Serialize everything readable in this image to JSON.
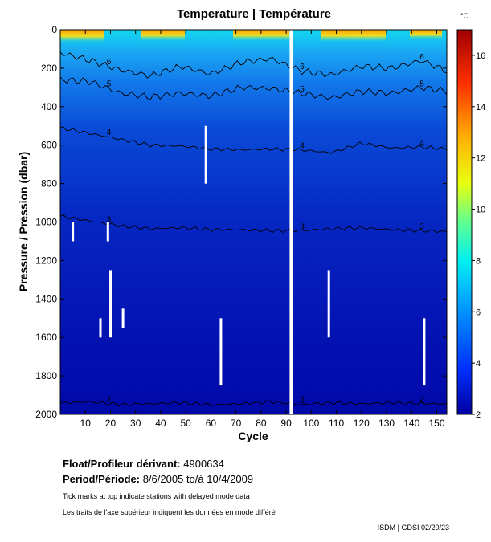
{
  "chart_data": {
    "type": "heatmap",
    "title": "Temperature | Température",
    "xlabel": "Cycle",
    "ylabel": "Pressure / Pression (dbar)",
    "colorbar_unit": "°C",
    "xlim": [
      0,
      154
    ],
    "ylim": [
      2000,
      0
    ],
    "clim": [
      2,
      17
    ],
    "xticks": [
      10,
      20,
      30,
      40,
      50,
      60,
      70,
      80,
      90,
      100,
      110,
      120,
      130,
      140,
      150
    ],
    "yticks": [
      0,
      200,
      400,
      600,
      800,
      1000,
      1200,
      1400,
      1600,
      1800,
      2000
    ],
    "colorbar_ticks": [
      2,
      4,
      6,
      8,
      10,
      12,
      14,
      16
    ],
    "contours": [
      {
        "level": 6,
        "label": "6",
        "depths": [
          120,
          160,
          210,
          240,
          190,
          230,
          170,
          150,
          215,
          235,
          190,
          200,
          160,
          215
        ]
      },
      {
        "level": 5,
        "label": "5",
        "depths": [
          260,
          270,
          330,
          350,
          330,
          345,
          300,
          305,
          330,
          355,
          320,
          330,
          300,
          320
        ]
      },
      {
        "level": 4,
        "label": "4",
        "depths": [
          510,
          540,
          570,
          600,
          605,
          620,
          625,
          620,
          625,
          640,
          590,
          615,
          610,
          620
        ]
      },
      {
        "level": 3,
        "label": "3",
        "depths": [
          970,
          995,
          1020,
          1035,
          1030,
          1040,
          1040,
          1045,
          1045,
          1035,
          1030,
          1040,
          1045,
          1050
        ]
      },
      {
        "level": 2,
        "label": "2",
        "depths": [
          1940,
          1935,
          1950,
          1945,
          1940,
          1950,
          1945,
          1935,
          1950,
          1940,
          1945,
          1940,
          1945,
          1945
        ]
      }
    ],
    "contour_x": [
      0,
      12,
      24,
      36,
      48,
      60,
      72,
      84,
      96,
      108,
      120,
      132,
      144,
      154
    ],
    "data_gaps": [
      {
        "cycle": 92,
        "pmin": 0,
        "pmax": 2000
      },
      {
        "cycle": 58,
        "pmin": 500,
        "pmax": 800
      },
      {
        "cycle": 5,
        "pmin": 1000,
        "pmax": 1100
      },
      {
        "cycle": 19,
        "pmin": 1000,
        "pmax": 1100
      },
      {
        "cycle": 20,
        "pmin": 1250,
        "pmax": 1600
      },
      {
        "cycle": 16,
        "pmin": 1500,
        "pmax": 1600
      },
      {
        "cycle": 25,
        "pmin": 1450,
        "pmax": 1550
      },
      {
        "cycle": 64,
        "pmin": 1500,
        "pmax": 1850
      },
      {
        "cycle": 107,
        "pmin": 1250,
        "pmax": 1600
      },
      {
        "cycle": 145,
        "pmin": 1500,
        "pmax": 1850
      }
    ]
  },
  "float_label": "Float/Profileur dérivant:",
  "float_id": "4900634",
  "period_label": "Period/Période:",
  "period_start": "8/6/2005",
  "period_sep": "to/à",
  "period_end": "10/4/2009",
  "note_en": "Tick marks at top indicate stations with delayed mode data",
  "note_fr": "Les traits de l'axe supérieur indiquent les données en mode différé",
  "credit": "ISDM | GDSI  02/20/23"
}
